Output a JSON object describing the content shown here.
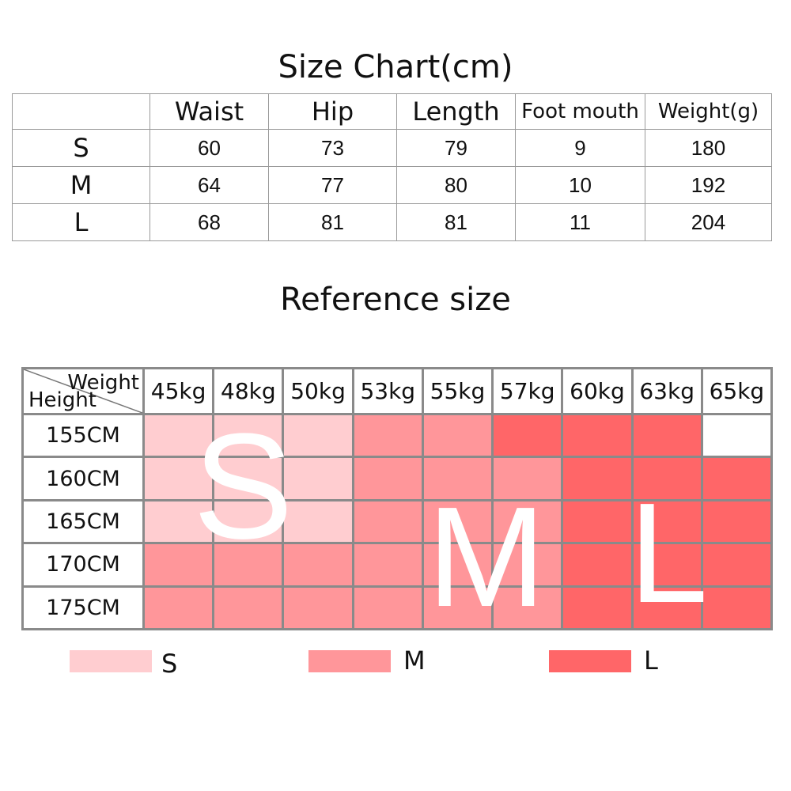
{
  "size_chart": {
    "title": "Size Chart(cm)",
    "columns": [
      "Waist",
      "Hip",
      "Length",
      "Foot mouth",
      "Weight(g)"
    ],
    "rows": [
      {
        "size": "S",
        "values": [
          "60",
          "73",
          "79",
          "9",
          "180"
        ]
      },
      {
        "size": "M",
        "values": [
          "64",
          "77",
          "80",
          "10",
          "192"
        ]
      },
      {
        "size": "L",
        "values": [
          "68",
          "81",
          "81",
          "11",
          "204"
        ]
      }
    ]
  },
  "reference": {
    "title": "Reference size",
    "corner_weight": "Weight",
    "corner_height": "Height",
    "weights": [
      "45kg",
      "48kg",
      "50kg",
      "53kg",
      "55kg",
      "57kg",
      "60kg",
      "63kg",
      "65kg"
    ],
    "heights": [
      "155CM",
      "160CM",
      "165CM",
      "170CM",
      "175CM"
    ],
    "grid": [
      [
        "S",
        "S",
        "S",
        "M",
        "M",
        "L",
        "L",
        "L",
        ""
      ],
      [
        "S",
        "S",
        "S",
        "M",
        "M",
        "M",
        "L",
        "L",
        "L"
      ],
      [
        "S",
        "S",
        "S",
        "M",
        "M",
        "M",
        "L",
        "L",
        "L"
      ],
      [
        "M",
        "M",
        "M",
        "M",
        "M",
        "M",
        "L",
        "L",
        "L"
      ],
      [
        "M",
        "M",
        "M",
        "M",
        "M",
        "M",
        "L",
        "L",
        "L"
      ]
    ],
    "overlay_letters": {
      "s": "S",
      "m": "M",
      "l": "L"
    },
    "colors": {
      "S": "#ffcdd0",
      "M": "#ff969a",
      "L": "#ff6668"
    }
  },
  "legend": [
    {
      "label": "S",
      "color": "#ffcdd0"
    },
    {
      "label": "M",
      "color": "#ff969a"
    },
    {
      "label": "L",
      "color": "#ff6668"
    }
  ]
}
